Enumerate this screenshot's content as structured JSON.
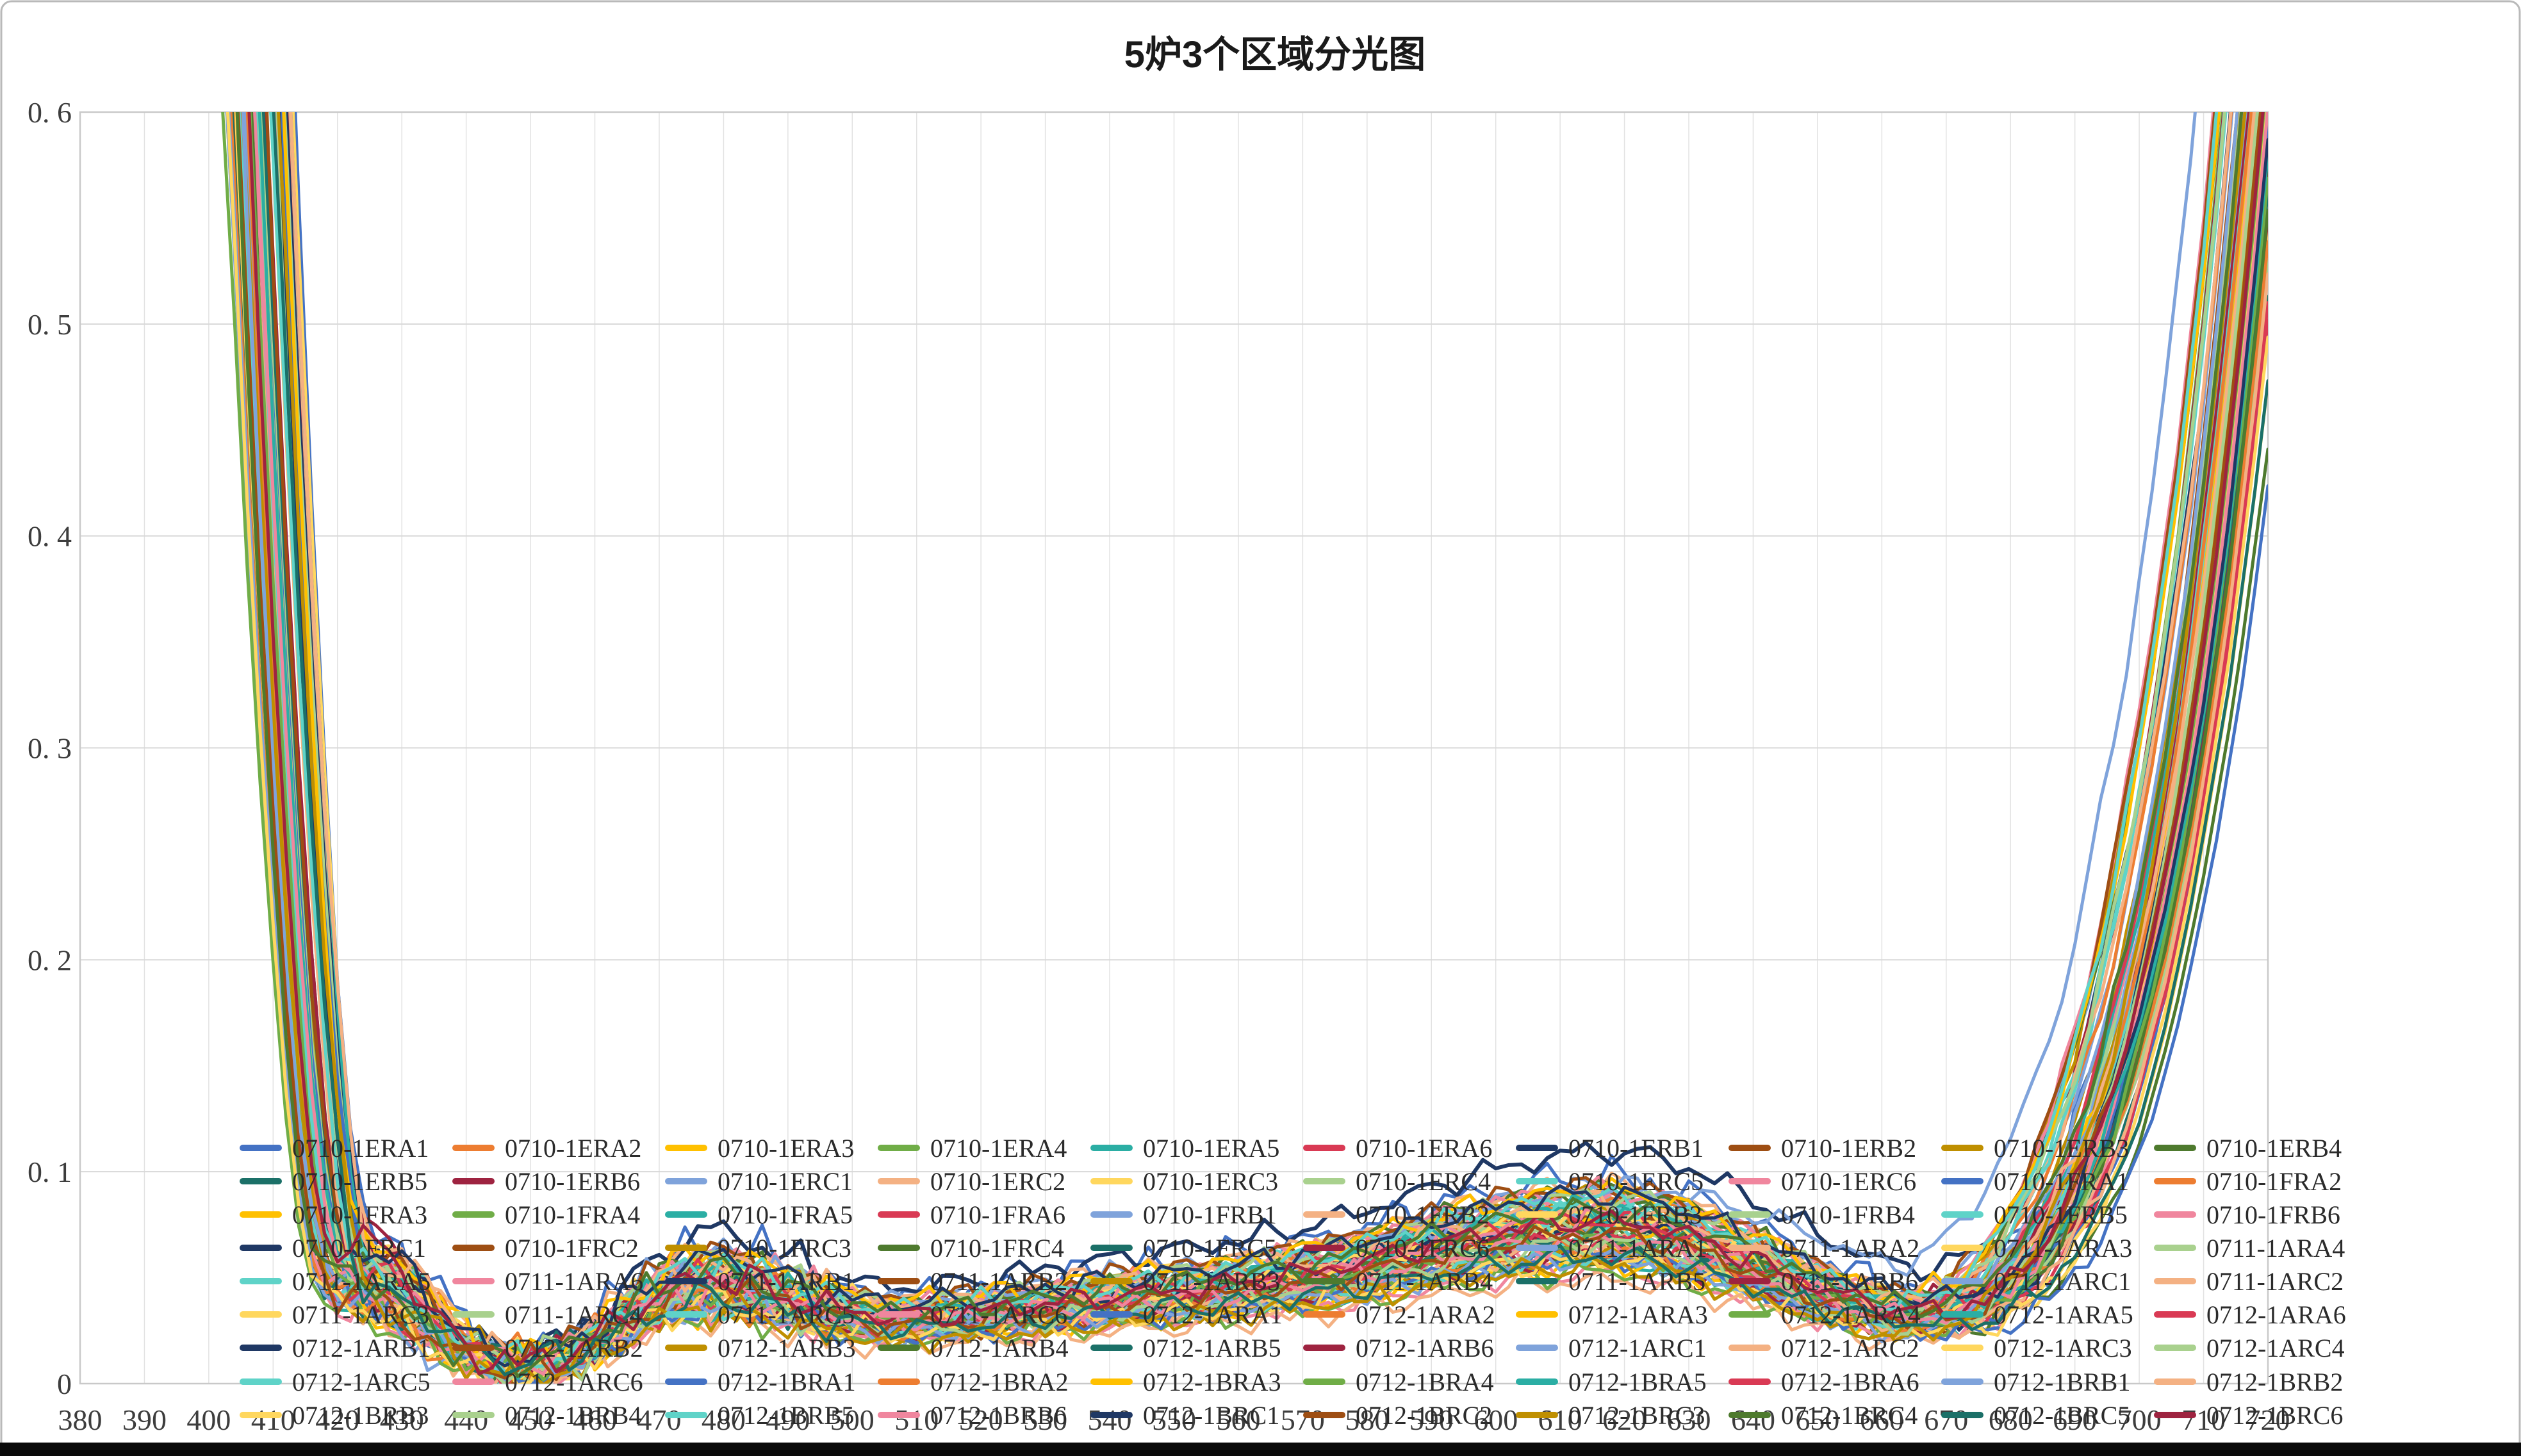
{
  "window": {
    "background_color": "#FFFFFF",
    "border_color": "#B9B9B9",
    "bottom_bar_color": "#0A0A0A"
  },
  "chart_data": {
    "type": "line",
    "title": "5炉3个区域分光图",
    "xlabel": "",
    "ylabel": "",
    "x_range": [
      380,
      720
    ],
    "ylim": [
      0,
      0.6
    ],
    "grid": true,
    "legend_position": "overlay-bottom-grid-10x9",
    "x_ticks": [
      380,
      390,
      400,
      410,
      420,
      430,
      440,
      450,
      460,
      470,
      480,
      490,
      500,
      510,
      520,
      530,
      540,
      550,
      560,
      570,
      580,
      590,
      600,
      610,
      620,
      630,
      640,
      650,
      660,
      670,
      680,
      690,
      700,
      710,
      720
    ],
    "y_tick_labels": [
      "0",
      "0. 1",
      "0. 2",
      "0. 3",
      "0. 4",
      "0. 5",
      "0. 6"
    ],
    "series_names": [
      "0710-1ERA1",
      "0710-1ERA2",
      "0710-1ERA3",
      "0710-1ERA4",
      "0710-1ERA5",
      "0710-1ERA6",
      "0710-1ERB1",
      "0710-1ERB2",
      "0710-1ERB3",
      "0710-1ERB4",
      "0710-1ERB5",
      "0710-1ERB6",
      "0710-1ERC1",
      "0710-1ERC2",
      "0710-1ERC3",
      "0710-1ERC4",
      "0710-1ERC5",
      "0710-1ERC6",
      "0710-1FRA1",
      "0710-1FRA2",
      "0710-1FRA3",
      "0710-1FRA4",
      "0710-1FRA5",
      "0710-1FRA6",
      "0710-1FRB1",
      "0710-1FRB2",
      "0710-1FRB3",
      "0710-1FRB4",
      "0710-1FRB5",
      "0710-1FRB6",
      "0710-1FRC1",
      "0710-1FRC2",
      "0710-1FRC3",
      "0710-1FRC4",
      "0710-1FRC5",
      "0710-1FRC6",
      "0711-1ARA1",
      "0711-1ARA2",
      "0711-1ARA3",
      "0711-1ARA4",
      "0711-1ARA5",
      "0711-1ARA6",
      "0711-1ARB1",
      "0711-1ARB2",
      "0711-1ARB3",
      "0711-1ARB4",
      "0711-1ARB5",
      "0711-1ARB6",
      "0711-1ARC1",
      "0711-1ARC2",
      "0711-1ARC3",
      "0711-1ARC4",
      "0711-1ARC5",
      "0711-1ARC6",
      "0712-1ARA1",
      "0712-1ARA2",
      "0712-1ARA3",
      "0712-1ARA4",
      "0712-1ARA5",
      "0712-1ARA6",
      "0712-1ARB1",
      "0712-1ARB2",
      "0712-1ARB3",
      "0712-1ARB4",
      "0712-1ARB5",
      "0712-1ARB6",
      "0712-1ARC1",
      "0712-1ARC2",
      "0712-1ARC3",
      "0712-1ARC4",
      "0712-1ARC5",
      "0712-1ARC6",
      "0712-1BRA1",
      "0712-1BRA2",
      "0712-1BRA3",
      "0712-1BRA4",
      "0712-1BRA5",
      "0712-1BRA6",
      "0712-1BRB1",
      "0712-1BRB2",
      "0712-1BRB3",
      "0712-1BRB4",
      "0712-1BRB5",
      "0712-1BRB6",
      "0712-1BRC1",
      "0712-1BRC2",
      "0712-1BRC3",
      "0712-1BRC4",
      "0712-1BRC5",
      "0712-1BRC6"
    ],
    "palette": {
      "base": [
        "#4472C4",
        "#ED7D31",
        "#FFC000",
        "#70AD47",
        "#2BAEA4",
        "#D93A54"
      ],
      "dark": [
        "#1F3864",
        "#9E4E13",
        "#BF8F00",
        "#4E7A2E",
        "#1B7068",
        "#9E2340"
      ],
      "light": [
        "#7FA3DB",
        "#F4B183",
        "#FFD75E",
        "#A9D18E",
        "#5FD3C8",
        "#F0869E"
      ]
    },
    "series_color_groups": [
      "base",
      "dark",
      "light",
      "base",
      "light",
      "dark",
      "light",
      "dark",
      "light",
      "base",
      "dark",
      "light",
      "base",
      "light",
      "dark"
    ],
    "grid_color_h": "#D8D8D8",
    "grid_color_v": "#E2E2E2",
    "plot_border_color": "#C9C9C9",
    "base_curve": {
      "x": [
        396,
        400,
        404,
        408,
        410,
        412,
        414,
        416,
        418,
        420,
        422,
        424,
        426,
        428,
        430,
        433,
        436,
        440,
        444,
        448,
        452,
        456,
        460,
        464,
        468,
        472,
        476,
        480,
        484,
        488,
        492,
        496,
        500,
        505,
        510,
        515,
        520,
        525,
        530,
        535,
        540,
        545,
        550,
        555,
        560,
        565,
        570,
        575,
        580,
        585,
        590,
        595,
        600,
        605,
        610,
        615,
        620,
        625,
        630,
        635,
        640,
        645,
        650,
        655,
        660,
        665,
        670,
        675,
        680,
        685,
        690,
        695,
        700,
        705,
        710,
        715,
        720
      ],
      "y": [
        1.4,
        1.1,
        0.85,
        0.6,
        0.46,
        0.34,
        0.24,
        0.155,
        0.095,
        0.06,
        0.048,
        0.046,
        0.048,
        0.046,
        0.042,
        0.034,
        0.024,
        0.015,
        0.01,
        0.009,
        0.01,
        0.014,
        0.02,
        0.028,
        0.036,
        0.043,
        0.047,
        0.048,
        0.045,
        0.041,
        0.037,
        0.034,
        0.032,
        0.03,
        0.03,
        0.031,
        0.032,
        0.034,
        0.036,
        0.037,
        0.039,
        0.04,
        0.042,
        0.043,
        0.045,
        0.047,
        0.049,
        0.052,
        0.055,
        0.058,
        0.062,
        0.065,
        0.068,
        0.07,
        0.072,
        0.073,
        0.072,
        0.07,
        0.066,
        0.061,
        0.055,
        0.049,
        0.043,
        0.038,
        0.034,
        0.032,
        0.033,
        0.038,
        0.05,
        0.07,
        0.098,
        0.138,
        0.195,
        0.27,
        0.37,
        0.5,
        0.66
      ]
    },
    "variation": {
      "scale1": [
        0.2,
        2.399,
        0.3
      ],
      "scale2": [
        0.09,
        0.83,
        1.7
      ],
      "offset": [
        0.003,
        1.37,
        0.5
      ],
      "shift_left": [
        4.2,
        2.71,
        1.2
      ],
      "shift_right": [
        4.2,
        1.51,
        0.3
      ],
      "noise_amp": 0.0036
    },
    "overrides": {
      "0": {
        "scale": 1.32,
        "noise": 1.6
      },
      "6": {
        "scale": 1.46,
        "lift": 0.006
      },
      "11": {
        "lbump": 0.02
      },
      "12": {
        "scale": 1.22
      },
      "23": {
        "lbump": 0.014
      },
      "33": {
        "shift_right": 5
      },
      "35": {
        "lbump": 0.016
      },
      "66": {
        "lift": 0.018,
        "shift_right": -7
      },
      "72": {
        "shift_right": 6.5
      },
      "89": {
        "lbump": 0.018
      }
    }
  }
}
